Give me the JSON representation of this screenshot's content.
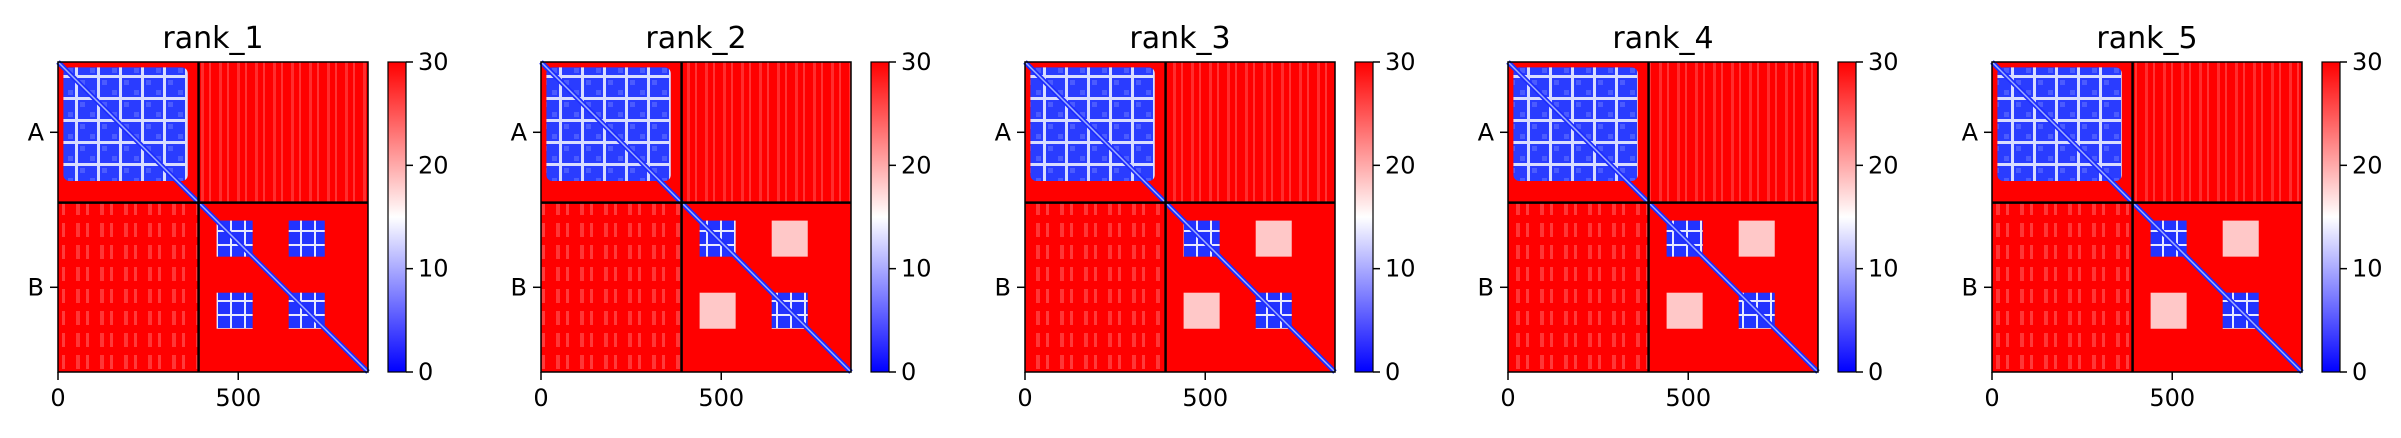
{
  "chart_data": [
    {
      "type": "heatmap",
      "title": "rank_1",
      "x_ticks": [
        0,
        500
      ],
      "y_tick_labels": [
        "A",
        "B"
      ],
      "chain_boundary": 390,
      "total_length": 860,
      "colorbar": {
        "min": 0,
        "max": 30,
        "ticks": [
          0,
          10,
          20,
          30
        ],
        "colors": [
          "#0000ff",
          "#ffffff",
          "#ff0000"
        ]
      }
    },
    {
      "type": "heatmap",
      "title": "rank_2",
      "x_ticks": [
        0,
        500
      ],
      "y_tick_labels": [
        "A",
        "B"
      ],
      "chain_boundary": 390,
      "total_length": 860,
      "colorbar": {
        "min": 0,
        "max": 30,
        "ticks": [
          0,
          10,
          20,
          30
        ],
        "colors": [
          "#0000ff",
          "#ffffff",
          "#ff0000"
        ]
      }
    },
    {
      "type": "heatmap",
      "title": "rank_3",
      "x_ticks": [
        0,
        500
      ],
      "y_tick_labels": [
        "A",
        "B"
      ],
      "chain_boundary": 390,
      "total_length": 860,
      "colorbar": {
        "min": 0,
        "max": 30,
        "ticks": [
          0,
          10,
          20,
          30
        ],
        "colors": [
          "#0000ff",
          "#ffffff",
          "#ff0000"
        ]
      }
    },
    {
      "type": "heatmap",
      "title": "rank_4",
      "x_ticks": [
        0,
        500
      ],
      "y_tick_labels": [
        "A",
        "B"
      ],
      "chain_boundary": 390,
      "total_length": 860,
      "colorbar": {
        "min": 0,
        "max": 30,
        "ticks": [
          0,
          10,
          20,
          30
        ],
        "colors": [
          "#0000ff",
          "#ffffff",
          "#ff0000"
        ]
      }
    },
    {
      "type": "heatmap",
      "title": "rank_5",
      "x_ticks": [
        0,
        500
      ],
      "y_tick_labels": [
        "A",
        "B"
      ],
      "chain_boundary": 390,
      "total_length": 860,
      "colorbar": {
        "min": 0,
        "max": 30,
        "ticks": [
          0,
          10,
          20,
          30
        ],
        "colors": [
          "#0000ff",
          "#ffffff",
          "#ff0000"
        ]
      }
    }
  ]
}
